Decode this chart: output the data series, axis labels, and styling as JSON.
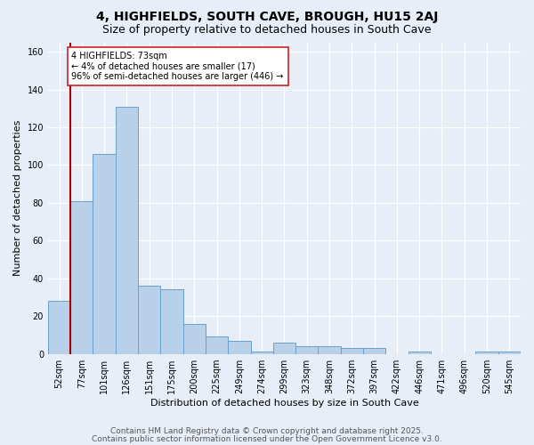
{
  "title": "4, HIGHFIELDS, SOUTH CAVE, BROUGH, HU15 2AJ",
  "subtitle": "Size of property relative to detached houses in South Cave",
  "xlabel": "Distribution of detached houses by size in South Cave",
  "ylabel": "Number of detached properties",
  "categories": [
    "52sqm",
    "77sqm",
    "101sqm",
    "126sqm",
    "151sqm",
    "175sqm",
    "200sqm",
    "225sqm",
    "249sqm",
    "274sqm",
    "299sqm",
    "323sqm",
    "348sqm",
    "372sqm",
    "397sqm",
    "422sqm",
    "446sqm",
    "471sqm",
    "496sqm",
    "520sqm",
    "545sqm"
  ],
  "values": [
    28,
    81,
    106,
    131,
    36,
    34,
    16,
    9,
    7,
    1,
    6,
    4,
    4,
    3,
    3,
    0,
    1,
    0,
    0,
    1,
    1
  ],
  "bar_color": "#b8d0e8",
  "bar_edge_color": "#6aa0cc",
  "marker_color": "#aa0000",
  "annotation_text": "4 HIGHFIELDS: 73sqm\n← 4% of detached houses are smaller (17)\n96% of semi-detached houses are larger (446) →",
  "annotation_box_color": "#ffffff",
  "annotation_box_edge_color": "#cc2222",
  "ylim": [
    0,
    165
  ],
  "yticks": [
    0,
    20,
    40,
    60,
    80,
    100,
    120,
    140,
    160
  ],
  "footer_line1": "Contains HM Land Registry data © Crown copyright and database right 2025.",
  "footer_line2": "Contains public sector information licensed under the Open Government Licence v3.0.",
  "bg_color": "#e8eef8",
  "plot_bg_color": "#e8eef8",
  "title_fontsize": 10,
  "subtitle_fontsize": 9,
  "tick_fontsize": 7,
  "axis_label_fontsize": 8,
  "footer_fontsize": 6.5,
  "annotation_fontsize": 7
}
